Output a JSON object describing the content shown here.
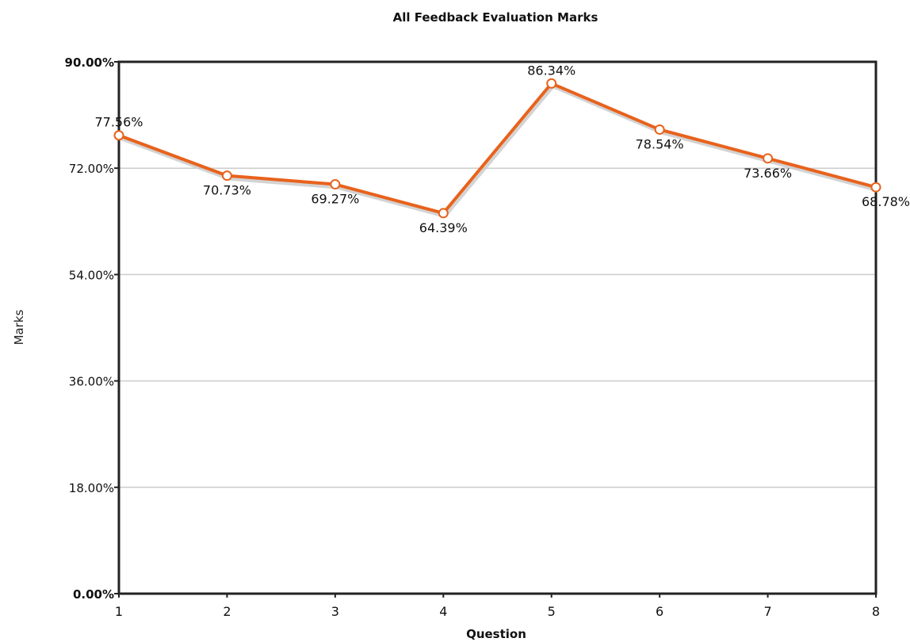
{
  "chart_data": {
    "type": "line",
    "title": "All Feedback Evaluation Marks",
    "xlabel": "Question",
    "ylabel": "Marks",
    "categories": [
      "1",
      "2",
      "3",
      "4",
      "5",
      "6",
      "7",
      "8"
    ],
    "series": [
      {
        "values": [
          77.56,
          70.73,
          69.27,
          64.39,
          86.34,
          78.54,
          73.66,
          68.78
        ],
        "labels": [
          "77.56%",
          "70.73%",
          "69.27%",
          "64.39%",
          "86.34%",
          "78.54%",
          "73.66%",
          "68.78%"
        ],
        "color": "#e8621c"
      }
    ],
    "ylim": [
      0,
      90
    ],
    "yticks": [
      0,
      18,
      36,
      54,
      72,
      90
    ],
    "ytick_labels": [
      "0.00%",
      "18.00%",
      "36.00%",
      "54.00%",
      "72.00%",
      "90.00%"
    ],
    "grid": true,
    "legend": "none",
    "colors": {
      "line": "#e8621c",
      "marker_fill": "#ffffff",
      "grid": "#cccccc",
      "frame": "#222222",
      "shadow": "#c8c8c8"
    }
  }
}
